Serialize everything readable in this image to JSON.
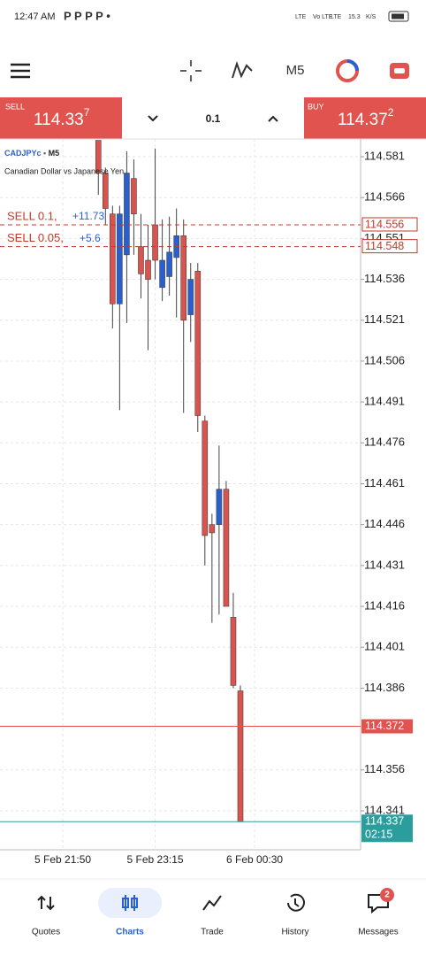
{
  "status_bar": {
    "time": "12:47 AM",
    "indicators": [
      "LTE",
      "Vo LTE",
      "LTE",
      "15.3",
      "K/S"
    ]
  },
  "toolbar": {
    "timeframe": "M5"
  },
  "trade_panel": {
    "sell": {
      "label": "SELL",
      "price": "114.33",
      "pip": "7"
    },
    "volume": "0.1",
    "buy": {
      "label": "BUY",
      "price": "114.37",
      "pip": "2"
    }
  },
  "chart_data": {
    "type": "candlestick",
    "symbol": "CADJPYc",
    "timeframe": "M5",
    "description": "Canadian Dollar vs Japanese Yen",
    "categories": [
      null,
      null,
      "5 Feb 21:50",
      null,
      null,
      null,
      null,
      null,
      null,
      null,
      null,
      null,
      null,
      null,
      null,
      "5 Feb 23:15",
      null,
      null,
      null,
      null,
      null,
      null,
      null,
      null,
      null,
      null,
      null,
      null,
      null,
      "6 Feb 00:30"
    ],
    "open": [
      null,
      null,
      null,
      null,
      null,
      null,
      null,
      114.587,
      114.575,
      114.56,
      114.527,
      114.545,
      114.573,
      114.548,
      114.543,
      114.556,
      114.533,
      114.537,
      114.544,
      114.552,
      114.523,
      114.539,
      114.484,
      114.446,
      114.446,
      114.459,
      114.412,
      114.385,
      null,
      null
    ],
    "high": [
      null,
      null,
      null,
      null,
      null,
      null,
      null,
      114.587,
      114.577,
      114.563,
      114.563,
      114.583,
      114.58,
      114.56,
      114.556,
      114.584,
      114.558,
      114.559,
      114.562,
      114.558,
      114.542,
      114.542,
      114.486,
      114.45,
      114.475,
      114.462,
      114.421,
      114.387,
      null,
      null
    ],
    "low": [
      null,
      null,
      null,
      null,
      null,
      null,
      null,
      114.567,
      114.556,
      114.518,
      114.488,
      114.52,
      114.545,
      114.529,
      114.51,
      114.536,
      114.528,
      114.53,
      114.522,
      114.487,
      114.513,
      114.48,
      114.431,
      114.41,
      114.413,
      114.416,
      114.386,
      114.337,
      null,
      null
    ],
    "close": [
      null,
      null,
      null,
      null,
      null,
      null,
      null,
      114.575,
      114.562,
      114.527,
      114.56,
      114.575,
      114.56,
      114.538,
      114.536,
      114.543,
      114.543,
      114.546,
      114.552,
      114.521,
      114.536,
      114.486,
      114.442,
      114.443,
      114.459,
      114.416,
      114.387,
      114.337,
      null,
      null
    ],
    "colors": {
      "up": "#2a5fcf",
      "down": "#d9534f"
    },
    "ylim": [
      114.3267,
      114.5875
    ],
    "yticks": [
      114.581,
      114.566,
      114.551,
      114.536,
      114.521,
      114.506,
      114.491,
      114.476,
      114.461,
      114.446,
      114.431,
      114.416,
      114.401,
      114.386,
      114.356,
      114.341
    ],
    "grid": true,
    "orders": [
      {
        "label": "SELL 0.1,",
        "profit": "+11.73",
        "value": 114.556
      },
      {
        "label": "SELL 0.05,",
        "profit": "+5.6",
        "value": 114.548
      }
    ],
    "order_color": "#c0392b",
    "ask": {
      "value": 114.372,
      "color": "#e0534f"
    },
    "bid": {
      "value": 114.337,
      "time": "02:15",
      "color": "#2a9d9d"
    }
  },
  "nav": {
    "items": [
      "Quotes",
      "Charts",
      "Trade",
      "History",
      "Messages"
    ],
    "active": "Charts",
    "badge": 2
  }
}
